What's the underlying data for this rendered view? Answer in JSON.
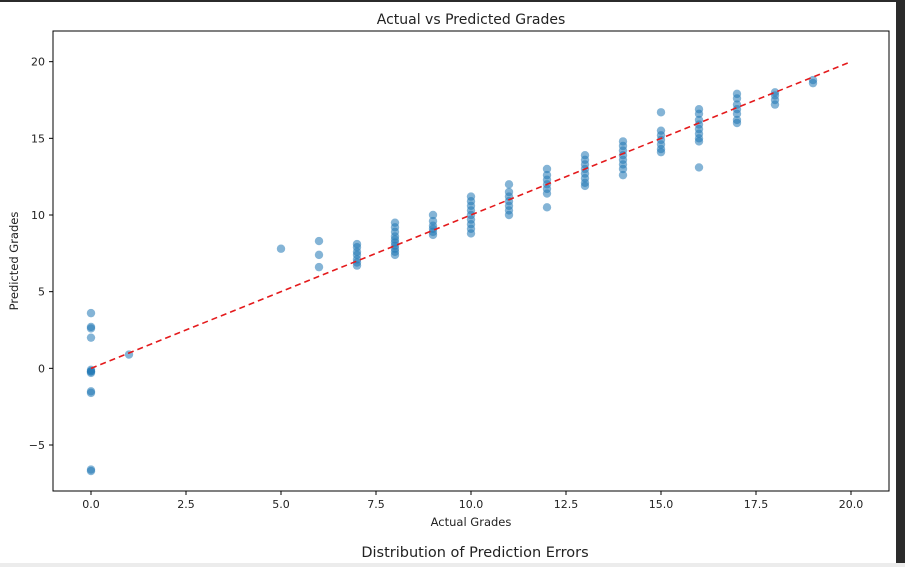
{
  "chart_data": {
    "type": "scatter",
    "title": "Actual vs Predicted Grades",
    "xlabel": "Actual Grades",
    "ylabel": "Predicted Grades",
    "xlim": [
      -1,
      21
    ],
    "ylim": [
      -8,
      22
    ],
    "xticks": [
      "0.0",
      "2.5",
      "5.0",
      "7.5",
      "10.0",
      "12.5",
      "15.0",
      "17.5",
      "20.0"
    ],
    "yticks": [
      "−5",
      "0",
      "5",
      "10",
      "15",
      "20"
    ],
    "grid": false,
    "legend": "none",
    "point_color": "#1f77b4",
    "point_alpha": 0.55,
    "reference_line": {
      "x": [
        0,
        20
      ],
      "y": [
        0,
        20
      ],
      "color": "#e41a1c",
      "style": "dashed"
    },
    "series": [
      {
        "points": [
          [
            0,
            3.6
          ],
          [
            0,
            2.7
          ],
          [
            0,
            2.6
          ],
          [
            0,
            2.0
          ],
          [
            0,
            -0.1
          ],
          [
            0,
            -0.2
          ],
          [
            0,
            -0.3
          ],
          [
            0,
            -0.2
          ],
          [
            0,
            -1.5
          ],
          [
            0,
            -1.6
          ],
          [
            0,
            -6.7
          ],
          [
            0,
            -6.6
          ],
          [
            1,
            0.9
          ],
          [
            5,
            7.8
          ],
          [
            6,
            8.3
          ],
          [
            6,
            7.4
          ],
          [
            6,
            6.6
          ],
          [
            7,
            8.1
          ],
          [
            7,
            7.9
          ],
          [
            7,
            7.6
          ],
          [
            7,
            7.4
          ],
          [
            7,
            7.1
          ],
          [
            7,
            6.9
          ],
          [
            7,
            6.7
          ],
          [
            8,
            9.5
          ],
          [
            8,
            9.2
          ],
          [
            8,
            8.9
          ],
          [
            8,
            8.6
          ],
          [
            8,
            8.4
          ],
          [
            8,
            8.2
          ],
          [
            8,
            8.0
          ],
          [
            8,
            7.8
          ],
          [
            8,
            7.6
          ],
          [
            8,
            7.4
          ],
          [
            9,
            10.0
          ],
          [
            9,
            9.6
          ],
          [
            9,
            9.3
          ],
          [
            9,
            9.1
          ],
          [
            9,
            8.9
          ],
          [
            9,
            8.7
          ],
          [
            10,
            11.2
          ],
          [
            10,
            10.9
          ],
          [
            10,
            10.6
          ],
          [
            10,
            10.3
          ],
          [
            10,
            10.0
          ],
          [
            10,
            9.7
          ],
          [
            10,
            9.4
          ],
          [
            10,
            9.1
          ],
          [
            10,
            8.8
          ],
          [
            11,
            12.0
          ],
          [
            11,
            11.5
          ],
          [
            11,
            11.2
          ],
          [
            11,
            10.9
          ],
          [
            11,
            10.6
          ],
          [
            11,
            10.3
          ],
          [
            11,
            10.0
          ],
          [
            12,
            13.0
          ],
          [
            12,
            12.6
          ],
          [
            12,
            12.3
          ],
          [
            12,
            12.0
          ],
          [
            12,
            11.7
          ],
          [
            12,
            11.4
          ],
          [
            12,
            10.5
          ],
          [
            13,
            13.9
          ],
          [
            13,
            13.6
          ],
          [
            13,
            13.3
          ],
          [
            13,
            13.0
          ],
          [
            13,
            12.7
          ],
          [
            13,
            12.4
          ],
          [
            13,
            12.1
          ],
          [
            13,
            11.9
          ],
          [
            14,
            14.8
          ],
          [
            14,
            14.5
          ],
          [
            14,
            14.2
          ],
          [
            14,
            13.9
          ],
          [
            14,
            13.6
          ],
          [
            14,
            13.3
          ],
          [
            14,
            13.0
          ],
          [
            14,
            12.6
          ],
          [
            15,
            16.7
          ],
          [
            15,
            15.5
          ],
          [
            15,
            15.2
          ],
          [
            15,
            14.9
          ],
          [
            15,
            14.6
          ],
          [
            15,
            14.3
          ],
          [
            15,
            14.1
          ],
          [
            16,
            16.9
          ],
          [
            16,
            16.6
          ],
          [
            16,
            16.2
          ],
          [
            16,
            15.9
          ],
          [
            16,
            15.6
          ],
          [
            16,
            15.3
          ],
          [
            16,
            15.0
          ],
          [
            16,
            14.8
          ],
          [
            16,
            13.1
          ],
          [
            17,
            17.9
          ],
          [
            17,
            17.6
          ],
          [
            17,
            17.2
          ],
          [
            17,
            16.9
          ],
          [
            17,
            16.6
          ],
          [
            17,
            16.2
          ],
          [
            17,
            16.0
          ],
          [
            18,
            18.0
          ],
          [
            18,
            17.8
          ],
          [
            18,
            17.5
          ],
          [
            18,
            17.2
          ],
          [
            19,
            18.8
          ],
          [
            19,
            18.6
          ]
        ]
      }
    ]
  },
  "next_figure": {
    "title": "Distribution of Prediction Errors"
  }
}
